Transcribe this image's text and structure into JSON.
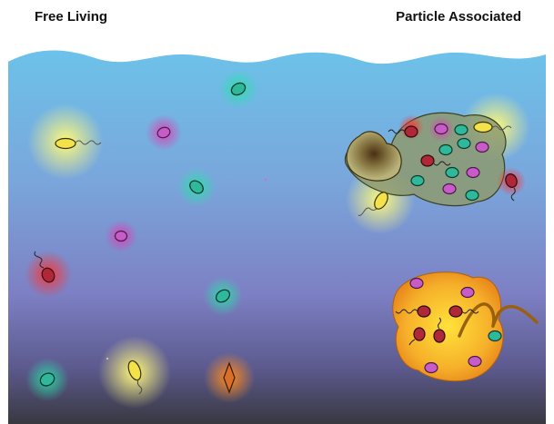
{
  "labels": {
    "free_living": "Free Living",
    "particle_associated": "Particle Associated"
  },
  "colors": {
    "water_top": "#6bbfe8",
    "water_mid": "#7b86c8",
    "water_bottom": "#3b3b44",
    "green_cell": "#2fb89a",
    "magenta_cell": "#c75bc7",
    "red_cell": "#b02838",
    "yellow_cell": "#f3e24a",
    "orange_cell": "#d9702a",
    "particle_orange": "#f2a524",
    "particle_green": "#8d9a70"
  }
}
